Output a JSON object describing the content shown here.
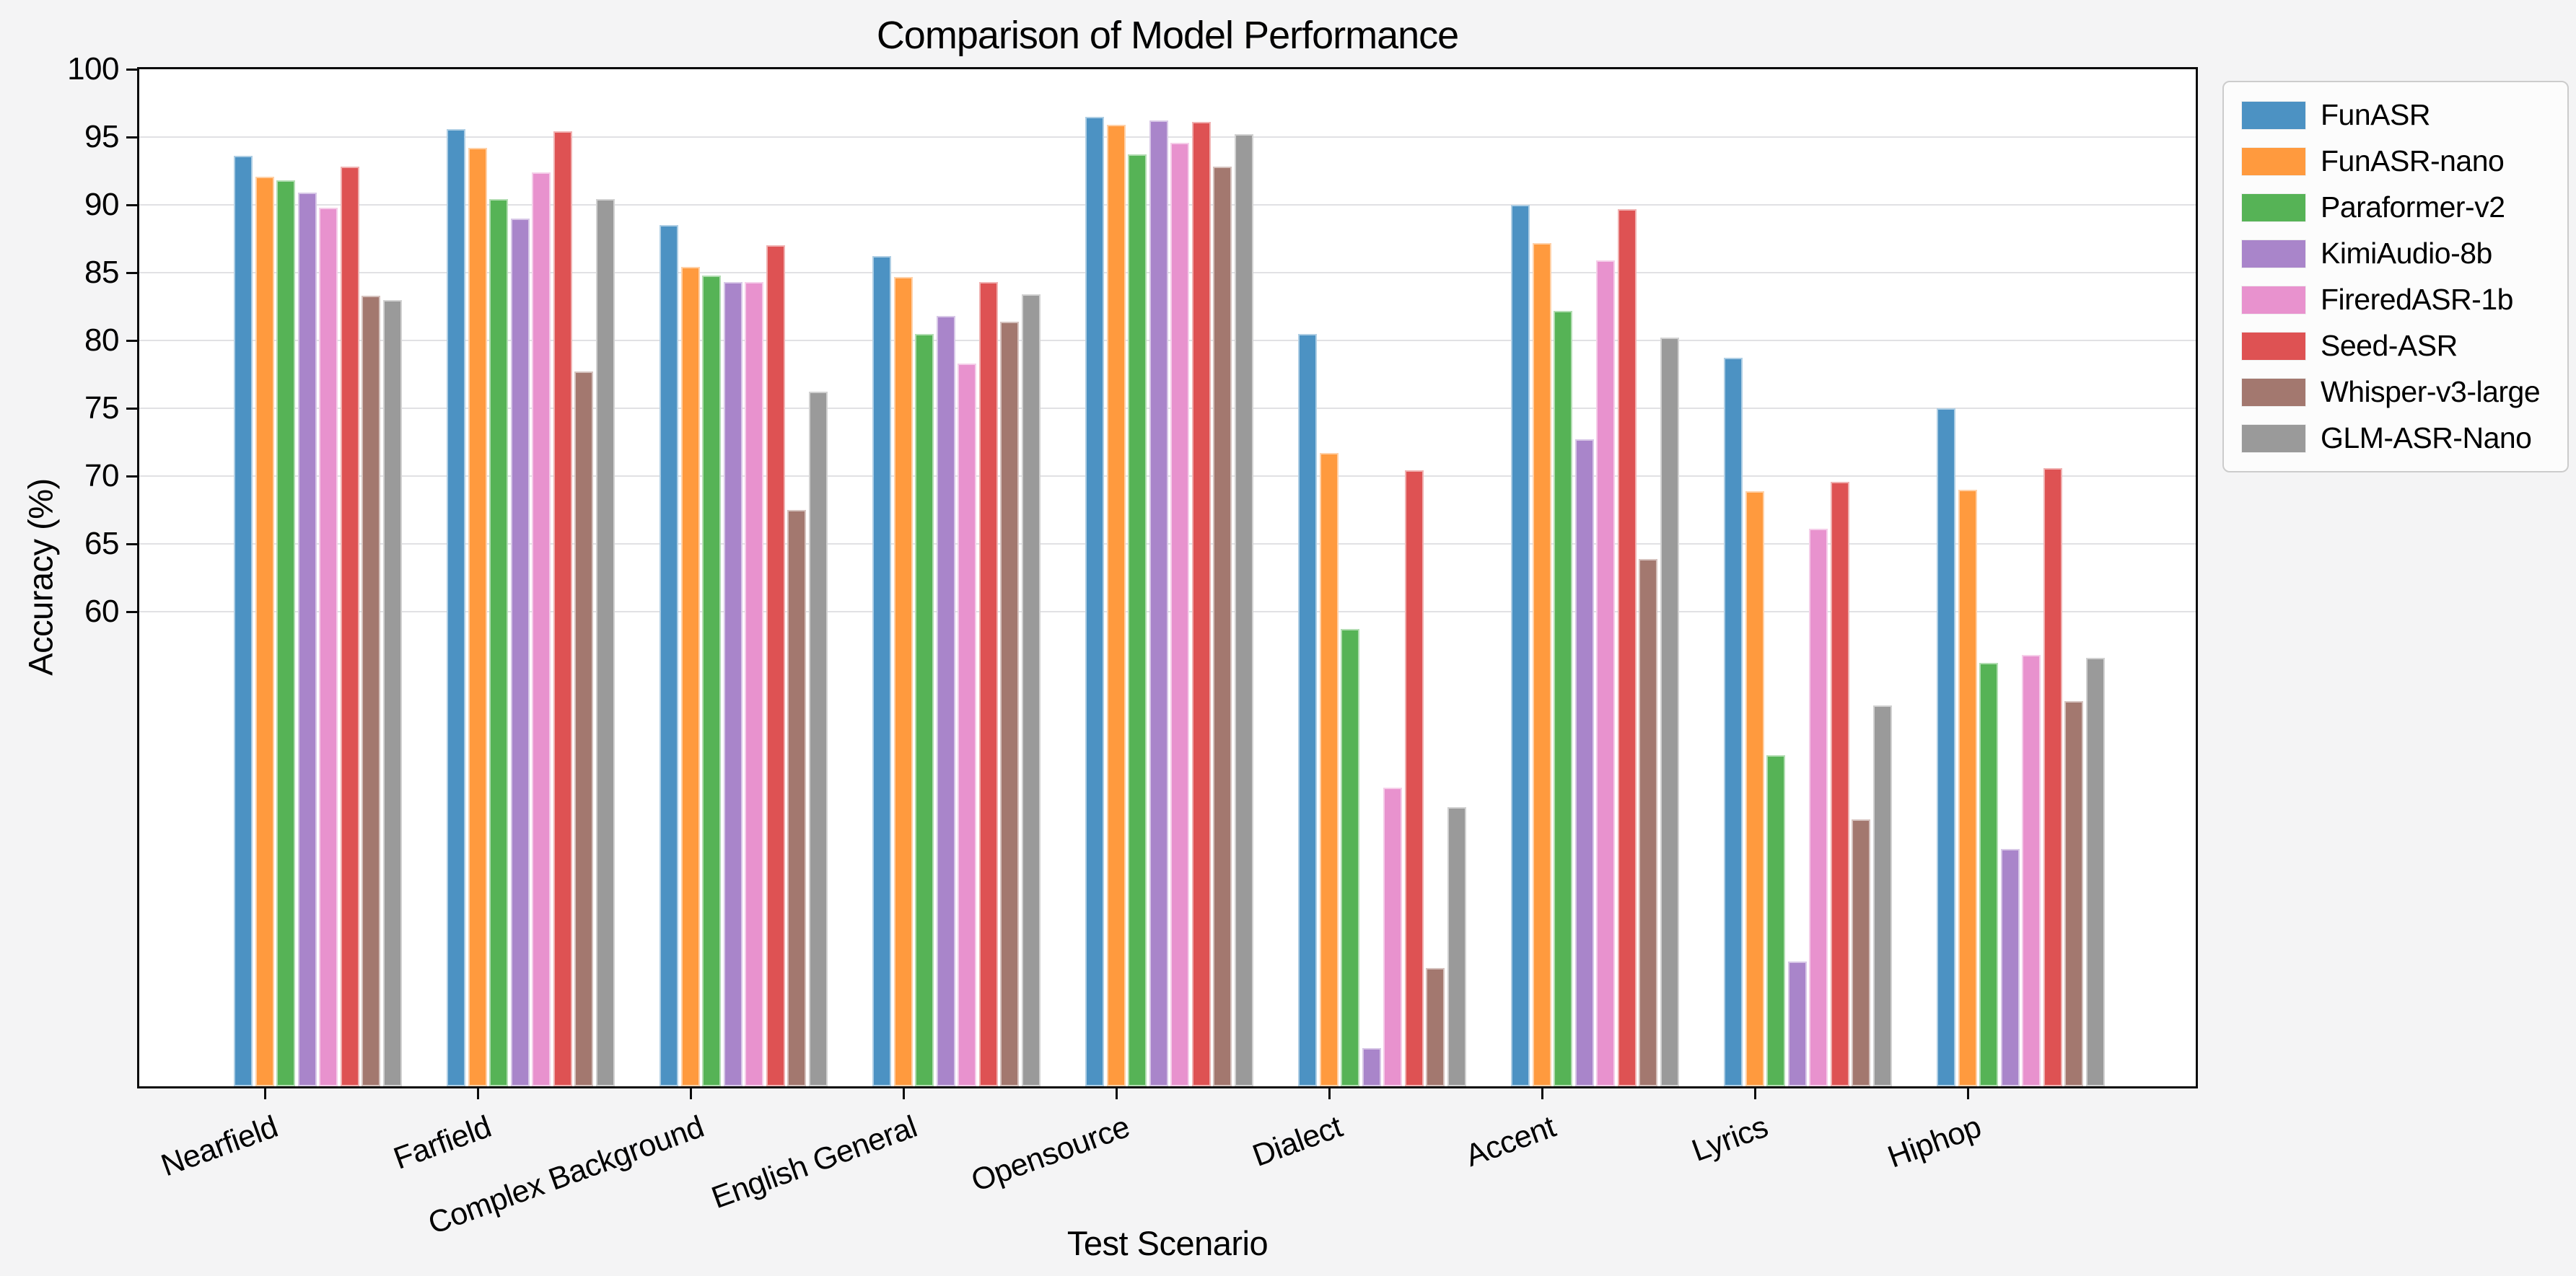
{
  "title": "Comparison of Model Performance",
  "xlabel": "Test Scenario",
  "ylabel": "Accuracy (%)",
  "colors": {
    "figure_background": "#f4f4f5",
    "axes_background": "#ffffff",
    "grid": "#e1e1e4",
    "spine": "#0a0a0a",
    "text": "#000000"
  },
  "chart_data": {
    "type": "bar",
    "title": "Comparison of Model Performance",
    "xlabel": "Test Scenario",
    "ylabel": "Accuracy (%)",
    "ylim": [
      25,
      100
    ],
    "yticks": [
      60,
      65,
      70,
      75,
      80,
      85,
      90,
      95,
      100
    ],
    "grid": true,
    "legend_position": "outside-upper-right",
    "categories": [
      "Nearfield",
      "Farfield",
      "Complex Background",
      "English General",
      "Opensource",
      "Dialect",
      "Accent",
      "Lyrics",
      "Hiphop"
    ],
    "series": [
      {
        "name": "FunASR",
        "color": "#4C92C3",
        "values": [
          93.6,
          95.6,
          88.5,
          86.2,
          96.5,
          80.5,
          90.0,
          78.7,
          75.0
        ]
      },
      {
        "name": "FunASR-nano",
        "color": "#FF9A3E",
        "values": [
          92.1,
          94.2,
          85.4,
          84.7,
          95.9,
          71.7,
          87.2,
          68.9,
          69.0
        ]
      },
      {
        "name": "Paraformer-v2",
        "color": "#56B356",
        "values": [
          91.8,
          90.4,
          84.8,
          80.5,
          93.7,
          58.7,
          82.2,
          49.4,
          56.2
        ]
      },
      {
        "name": "KimiAudio-8b",
        "color": "#A985CA",
        "values": [
          90.9,
          89.0,
          84.3,
          81.8,
          96.2,
          27.8,
          72.7,
          34.2,
          42.5
        ]
      },
      {
        "name": "FireredASR-1b",
        "color": "#E892CE",
        "values": [
          89.8,
          92.4,
          84.3,
          78.3,
          94.6,
          47.0,
          85.9,
          66.1,
          56.8
        ]
      },
      {
        "name": "Seed-ASR",
        "color": "#DE5253",
        "values": [
          92.8,
          95.4,
          87.0,
          84.3,
          96.1,
          70.4,
          89.7,
          69.6,
          70.6
        ]
      },
      {
        "name": "Whisper-v3-large",
        "color": "#A3786F",
        "values": [
          83.3,
          77.7,
          67.5,
          81.4,
          92.8,
          33.7,
          63.9,
          44.7,
          53.4
        ]
      },
      {
        "name": "GLM-ASR-Nano",
        "color": "#9A9A9A",
        "values": [
          83.0,
          90.4,
          76.2,
          83.4,
          95.2,
          45.6,
          80.2,
          53.1,
          56.6
        ]
      }
    ]
  }
}
